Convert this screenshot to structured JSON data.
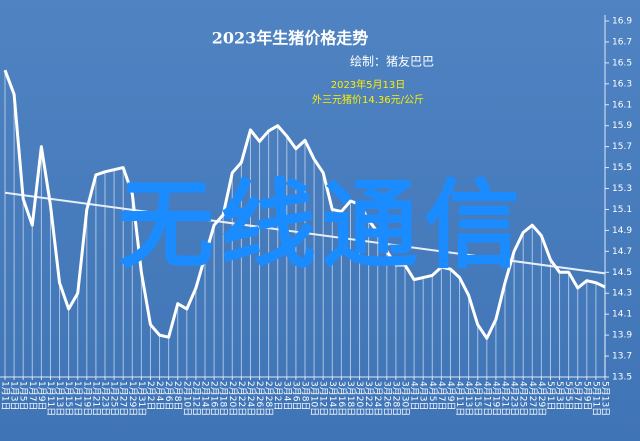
{
  "chart_data": {
    "type": "line",
    "title": "2023年生猪价格走势",
    "subtitle": "绘制：猪友巴巴",
    "annotation": [
      "2023年5月13日",
      "外三元猪价14.36元/公斤"
    ],
    "watermark": "无线通信",
    "categories": [
      "1月1日",
      "1月3日",
      "1月5日",
      "1月7日",
      "1月9日",
      "1月11日",
      "1月13日",
      "1月15日",
      "1月17日",
      "1月19日",
      "1月21日",
      "1月23日",
      "1月25日",
      "1月27日",
      "1月29日",
      "1月31日",
      "2月2日",
      "2月4日",
      "2月6日",
      "2月8日",
      "2月10日",
      "2月12日",
      "2月14日",
      "2月16日",
      "2月18日",
      "2月20日",
      "2月22日",
      "2月24日",
      "2月26日",
      "2月28日",
      "3月2日",
      "3月4日",
      "3月6日",
      "3月8日",
      "3月10日",
      "3月12日",
      "3月14日",
      "3月16日",
      "3月18日",
      "3月20日",
      "3月22日",
      "3月24日",
      "3月26日",
      "3月28日",
      "3月30日",
      "4月1日",
      "4月3日",
      "4月5日",
      "4月7日",
      "4月9日",
      "4月11日",
      "4月13日",
      "4月15日",
      "4月17日",
      "4月19日",
      "4月21日",
      "4月23日",
      "4月25日",
      "4月27日",
      "4月29日",
      "5月1日",
      "5月3日",
      "5月5日",
      "5月7日",
      "5月9日",
      "5月11日",
      "5月13日"
    ],
    "values": [
      16.43,
      16.2,
      15.2,
      14.95,
      15.7,
      15.14,
      14.4,
      14.15,
      14.3,
      15.1,
      15.43,
      15.46,
      15.48,
      15.5,
      15.25,
      14.5,
      14.0,
      13.9,
      13.88,
      14.2,
      14.15,
      14.35,
      14.65,
      14.95,
      15.05,
      15.45,
      15.55,
      15.86,
      15.75,
      15.85,
      15.9,
      15.8,
      15.68,
      15.76,
      15.58,
      15.45,
      15.1,
      15.08,
      15.18,
      15.15,
      15.0,
      14.88,
      14.7,
      14.57,
      14.57,
      14.43,
      14.45,
      14.47,
      14.55,
      14.53,
      14.45,
      14.28,
      14.0,
      13.87,
      14.05,
      14.4,
      14.7,
      14.88,
      14.95,
      14.85,
      14.62,
      14.5,
      14.5,
      14.35,
      14.42,
      14.4,
      14.36
    ],
    "color": "#ffffff",
    "trend_line": [
      15.26,
      14.49
    ],
    "ylim": [
      13.5,
      16.9
    ],
    "yticks": [
      16.9,
      16.7,
      16.5,
      16.3,
      16.1,
      15.9,
      15.7,
      15.5,
      15.3,
      15.1,
      14.9,
      14.7,
      14.5,
      14.3,
      14.1,
      13.9,
      13.7,
      13.5
    ]
  }
}
